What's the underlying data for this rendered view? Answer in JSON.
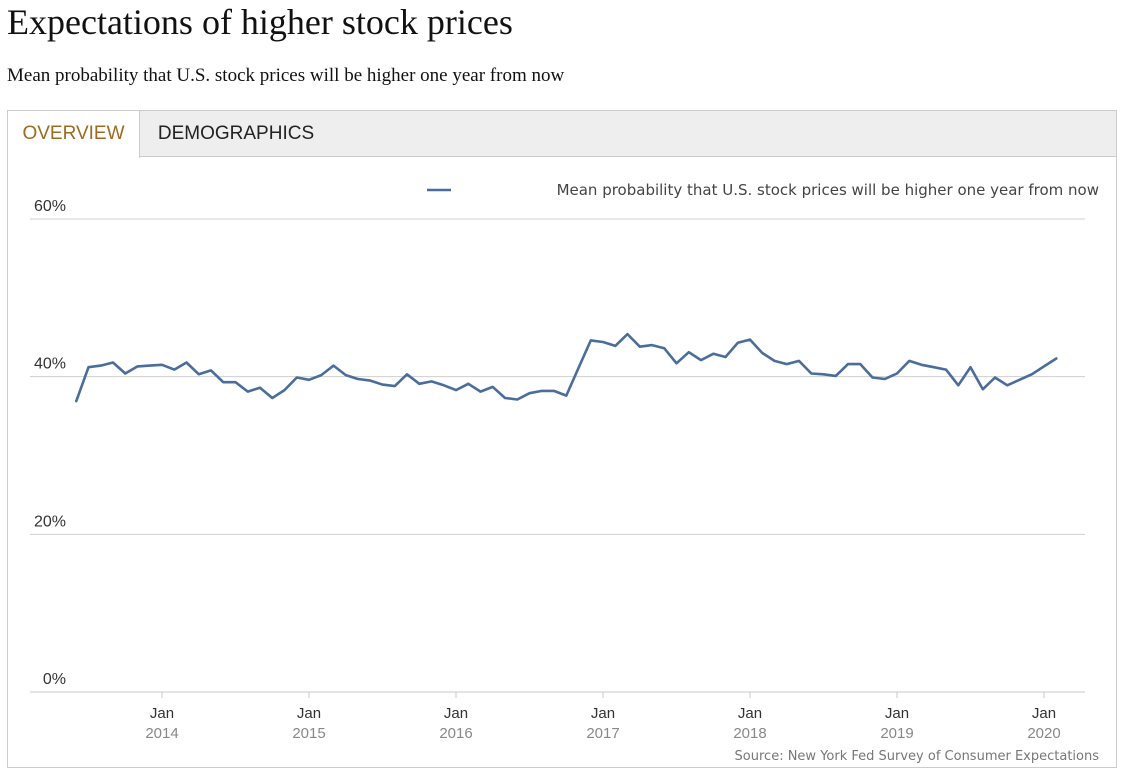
{
  "title": "Expectations of higher stock prices",
  "subtitle": "Mean probability that U.S. stock prices will be higher one year from now",
  "tabs": [
    {
      "label": "OVERVIEW",
      "active": true
    },
    {
      "label": "DEMOGRAPHICS",
      "active": false
    }
  ],
  "colors": {
    "series": "#4a6d9b",
    "active_tab": "#9c6b21"
  },
  "chart_data": {
    "type": "line",
    "legend_position": "top-right",
    "grid": true,
    "ylim": [
      0,
      60
    ],
    "y_ticks": [
      {
        "value": 0,
        "label": "0%"
      },
      {
        "value": 20,
        "label": "20%"
      },
      {
        "value": 40,
        "label": "40%"
      },
      {
        "value": 60,
        "label": "60%"
      }
    ],
    "x_ticks": [
      {
        "date": "2014-01",
        "label": "Jan",
        "sublabel": "2014"
      },
      {
        "date": "2015-01",
        "label": "Jan",
        "sublabel": "2015"
      },
      {
        "date": "2016-01",
        "label": "Jan",
        "sublabel": "2016"
      },
      {
        "date": "2017-01",
        "label": "Jan",
        "sublabel": "2017"
      },
      {
        "date": "2018-01",
        "label": "Jan",
        "sublabel": "2018"
      },
      {
        "date": "2019-01",
        "label": "Jan",
        "sublabel": "2019"
      },
      {
        "date": "2020-01",
        "label": "Jan",
        "sublabel": "2020"
      }
    ],
    "source": "Source: New York Fed Survey of Consumer Expectations",
    "series": [
      {
        "name": "Mean probability that U.S. stock prices will be higher one year from now",
        "x": [
          "2013-06",
          "2013-07",
          "2013-08",
          "2013-09",
          "2013-10",
          "2013-11",
          "2013-12",
          "2014-01",
          "2014-02",
          "2014-03",
          "2014-04",
          "2014-05",
          "2014-06",
          "2014-07",
          "2014-08",
          "2014-09",
          "2014-10",
          "2014-11",
          "2014-12",
          "2015-01",
          "2015-02",
          "2015-03",
          "2015-04",
          "2015-05",
          "2015-06",
          "2015-07",
          "2015-08",
          "2015-09",
          "2015-10",
          "2015-11",
          "2015-12",
          "2016-01",
          "2016-02",
          "2016-03",
          "2016-04",
          "2016-05",
          "2016-06",
          "2016-07",
          "2016-08",
          "2016-09",
          "2016-10",
          "2016-11",
          "2016-12",
          "2017-01",
          "2017-02",
          "2017-03",
          "2017-04",
          "2017-05",
          "2017-06",
          "2017-07",
          "2017-08",
          "2017-09",
          "2017-10",
          "2017-11",
          "2017-12",
          "2018-01",
          "2018-02",
          "2018-03",
          "2018-04",
          "2018-05",
          "2018-06",
          "2018-07",
          "2018-08",
          "2018-09",
          "2018-10",
          "2018-11",
          "2018-12",
          "2019-01",
          "2019-02",
          "2019-03",
          "2019-04",
          "2019-05",
          "2019-06",
          "2019-07",
          "2019-08",
          "2019-09",
          "2019-10",
          "2019-11",
          "2019-12",
          "2020-01",
          "2020-02"
        ],
        "values": [
          36.9,
          41.2,
          41.4,
          41.8,
          40.4,
          41.3,
          41.4,
          41.5,
          40.9,
          41.8,
          40.3,
          40.8,
          39.3,
          39.3,
          38.1,
          38.6,
          37.3,
          38.3,
          39.9,
          39.6,
          40.2,
          41.4,
          40.2,
          39.7,
          39.5,
          39.0,
          38.8,
          40.3,
          39.1,
          39.4,
          38.9,
          38.3,
          39.1,
          38.1,
          38.7,
          37.3,
          37.1,
          37.9,
          38.2,
          38.2,
          37.6,
          41.1,
          44.6,
          44.4,
          43.9,
          45.4,
          43.8,
          44.0,
          43.6,
          41.7,
          43.1,
          42.1,
          42.9,
          42.5,
          44.3,
          44.7,
          43.0,
          42.0,
          41.6,
          42.0,
          40.4,
          40.3,
          40.1,
          41.6,
          41.6,
          39.9,
          39.7,
          40.4,
          42.0,
          41.5,
          41.2,
          40.9,
          38.9,
          41.2,
          38.4,
          39.9,
          38.9,
          39.6,
          40.3,
          41.3,
          42.3
        ]
      }
    ]
  }
}
